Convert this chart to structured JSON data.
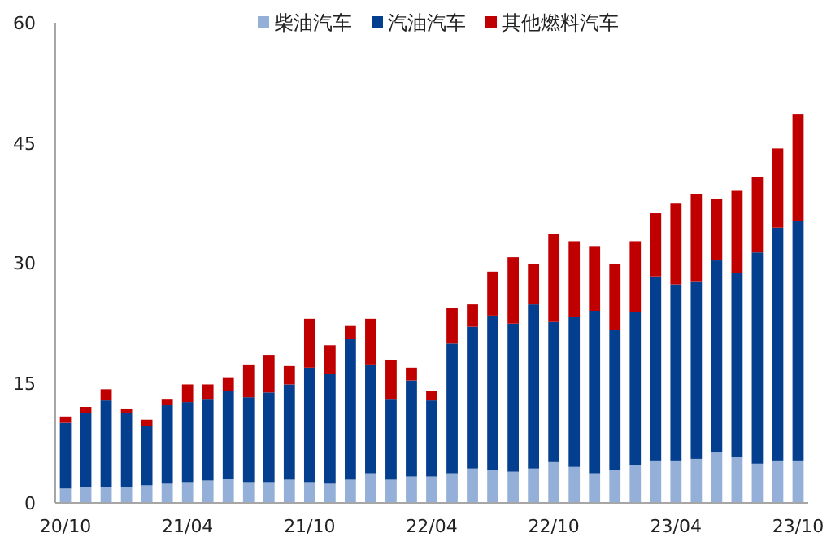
{
  "chart_data": {
    "type": "bar",
    "stacked": true,
    "legend": "top",
    "categories": [
      "20/10",
      null,
      null,
      null,
      null,
      null,
      "21/04",
      null,
      null,
      null,
      null,
      null,
      "21/10",
      null,
      null,
      null,
      null,
      null,
      "22/04",
      null,
      null,
      null,
      null,
      null,
      "22/10",
      null,
      null,
      null,
      null,
      null,
      "23/04",
      null,
      null,
      null,
      null,
      null,
      "23/10"
    ],
    "series": [
      {
        "name": "柴油汽车",
        "color": "#94b0d8",
        "values": [
          1.8,
          2.0,
          2.0,
          2.0,
          2.2,
          2.4,
          2.6,
          2.8,
          3.0,
          2.6,
          2.6,
          2.9,
          2.6,
          2.4,
          2.9,
          3.7,
          2.9,
          3.3,
          3.3,
          3.7,
          4.3,
          4.1,
          3.9,
          4.3,
          5.1,
          4.5,
          3.7,
          4.1,
          4.7,
          5.3,
          5.3,
          5.5,
          6.3,
          5.7,
          4.9,
          5.3,
          5.3
        ]
      },
      {
        "name": "汽油汽车",
        "color": "#033e8f",
        "values": [
          8.2,
          9.2,
          10.8,
          9.2,
          7.4,
          9.8,
          10.0,
          10.2,
          11.0,
          10.6,
          11.2,
          11.9,
          14.3,
          13.7,
          17.6,
          13.6,
          10.1,
          12.0,
          9.5,
          16.2,
          17.7,
          19.3,
          18.5,
          20.5,
          17.5,
          18.7,
          20.3,
          17.5,
          19.1,
          23.0,
          22.0,
          22.2,
          24.0,
          23.0,
          26.4,
          29.1,
          29.9
        ]
      },
      {
        "name": "其他燃料汽车",
        "color": "#c00000",
        "values": [
          0.8,
          0.8,
          1.4,
          0.6,
          0.8,
          0.8,
          2.2,
          1.8,
          1.7,
          4.1,
          4.7,
          2.3,
          6.1,
          3.6,
          1.7,
          5.7,
          4.9,
          1.6,
          1.2,
          4.5,
          2.8,
          5.5,
          8.3,
          5.1,
          11.0,
          9.5,
          8.1,
          8.3,
          8.9,
          7.9,
          10.1,
          10.9,
          7.7,
          10.3,
          9.4,
          9.9,
          13.4
        ]
      }
    ],
    "ylim": [
      0,
      60
    ],
    "yticks": [
      0,
      15,
      30,
      45,
      60
    ]
  }
}
